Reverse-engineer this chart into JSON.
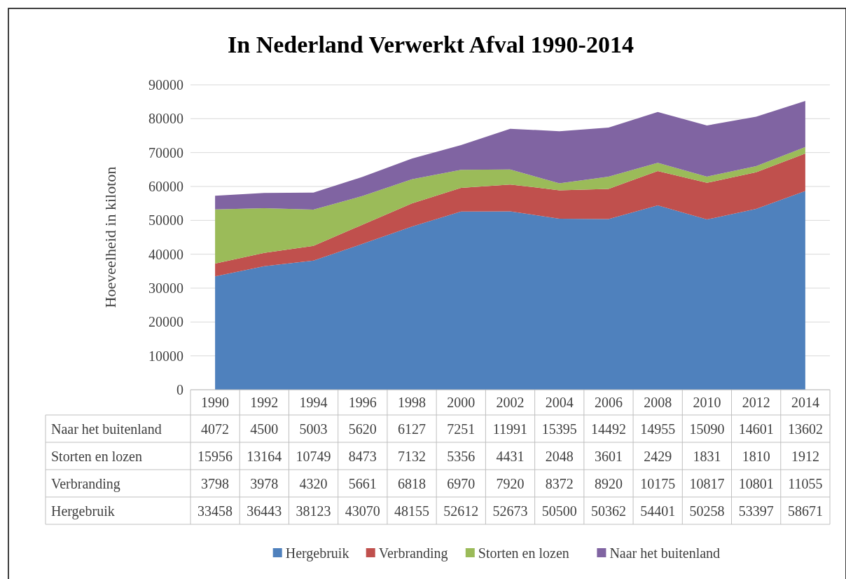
{
  "chart_data": {
    "type": "area",
    "title": "In Nederland Verwerkt Afval 1990-2014",
    "ylabel": "Hoeveelheid in kiloton",
    "stacked": true,
    "categories": [
      "1990",
      "1992",
      "1994",
      "1996",
      "1998",
      "2000",
      "2002",
      "2004",
      "2006",
      "2008",
      "2010",
      "2012",
      "2014"
    ],
    "series": [
      {
        "name": "Hergebruik",
        "color": "#4f81bd",
        "values": [
          33458,
          36443,
          38123,
          43070,
          48155,
          52612,
          52673,
          50500,
          50362,
          54401,
          50258,
          53397,
          58671
        ]
      },
      {
        "name": "Verbranding",
        "color": "#c0504d",
        "values": [
          3798,
          3978,
          4320,
          5661,
          6818,
          6970,
          7920,
          8372,
          8920,
          10175,
          10817,
          10801,
          11055
        ]
      },
      {
        "name": "Storten en lozen",
        "color": "#9bbb59",
        "values": [
          15956,
          13164,
          10749,
          8473,
          7132,
          5356,
          4431,
          2048,
          3601,
          2429,
          1831,
          1810,
          1912
        ]
      },
      {
        "name": "Naar het buitenland",
        "color": "#8064a2",
        "values": [
          4072,
          4500,
          5003,
          5620,
          6127,
          7251,
          11991,
          15395,
          14492,
          14955,
          15090,
          14601,
          13602
        ]
      }
    ],
    "ylim": [
      0,
      90000
    ],
    "yticks": [
      0,
      10000,
      20000,
      30000,
      40000,
      50000,
      60000,
      70000,
      80000,
      90000
    ],
    "grid": "y",
    "legend": "bottom",
    "data_labels": true
  }
}
